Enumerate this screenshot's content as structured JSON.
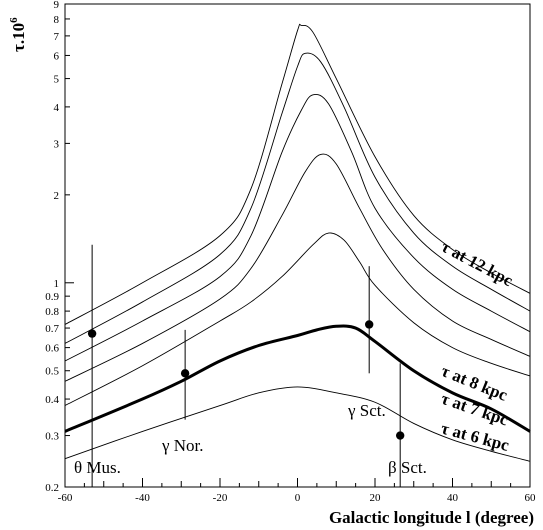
{
  "chart_data": {
    "type": "line",
    "xlabel": "Galactic longitude l (degree)",
    "ylabel": "τ.10",
    "ylabel_exponent": "6",
    "y_scale": "log",
    "xlim": [
      -60,
      60
    ],
    "ylim": [
      0.2,
      9
    ],
    "x_ticks": [
      "-60",
      "-40",
      "-20",
      "0",
      "20",
      "40",
      "60"
    ],
    "y_ticks": [
      {
        "value": 0.2,
        "label": "0.2"
      },
      {
        "value": 0.3,
        "label": "0.3"
      },
      {
        "value": 0.4,
        "label": "0.4"
      },
      {
        "value": 0.5,
        "label": "0.5"
      },
      {
        "value": 0.6,
        "label": "0.6"
      },
      {
        "value": 0.7,
        "label": "0.7"
      },
      {
        "value": 0.8,
        "label": "0.8"
      },
      {
        "value": 0.9,
        "label": "0.9"
      },
      {
        "value": 1,
        "label": "1"
      },
      {
        "value": 2,
        "label": "2"
      },
      {
        "value": 3,
        "label": "3"
      },
      {
        "value": 4,
        "label": "4"
      },
      {
        "value": 5,
        "label": "5"
      },
      {
        "value": 6,
        "label": "6"
      },
      {
        "value": 7,
        "label": "7"
      },
      {
        "value": 8,
        "label": "8"
      },
      {
        "value": 9,
        "label": "9"
      }
    ],
    "series": [
      {
        "name": "τ at 6 kpc",
        "bold": false,
        "x": [
          -60,
          -40,
          -20,
          -10,
          0,
          10,
          20,
          30,
          40,
          50,
          60
        ],
        "y": [
          0.25,
          0.31,
          0.38,
          0.42,
          0.44,
          0.42,
          0.39,
          0.33,
          0.29,
          0.265,
          0.245
        ]
      },
      {
        "name": "τ at 7 kpc",
        "bold": true,
        "x": [
          -60,
          -40,
          -30,
          -20,
          -10,
          0,
          5,
          10,
          15,
          20,
          30,
          40,
          50,
          60
        ],
        "y": [
          0.31,
          0.4,
          0.46,
          0.54,
          0.61,
          0.66,
          0.69,
          0.71,
          0.7,
          0.63,
          0.5,
          0.42,
          0.37,
          0.31
        ]
      },
      {
        "name": "",
        "bold": false,
        "x": [
          -60,
          -40,
          -20,
          -12,
          -4,
          4,
          8,
          12,
          16,
          20,
          30,
          40,
          50,
          60
        ],
        "y": [
          0.38,
          0.52,
          0.74,
          0.86,
          1.05,
          1.35,
          1.48,
          1.4,
          1.18,
          0.98,
          0.73,
          0.6,
          0.53,
          0.48
        ]
      },
      {
        "name": "",
        "bold": false,
        "x": [
          -60,
          -40,
          -20,
          -12,
          -4,
          2,
          6,
          10,
          16,
          22,
          30,
          40,
          50,
          60
        ],
        "y": [
          0.46,
          0.62,
          0.88,
          1.12,
          1.7,
          2.4,
          2.75,
          2.55,
          1.8,
          1.3,
          0.95,
          0.74,
          0.64,
          0.56
        ]
      },
      {
        "name": "τ at 8 kpc",
        "bold": false,
        "x": [
          -60,
          -40,
          -20,
          -12,
          -4,
          1,
          4,
          8,
          14,
          20,
          30,
          40,
          50,
          60
        ],
        "y": [
          0.54,
          0.74,
          1.05,
          1.45,
          2.8,
          3.9,
          4.4,
          4.1,
          2.8,
          1.8,
          1.22,
          0.95,
          0.8,
          0.68
        ]
      },
      {
        "name": "",
        "bold": false,
        "x": [
          -60,
          -40,
          -20,
          -12,
          -4,
          0,
          2,
          6,
          12,
          20,
          30,
          40,
          50,
          60
        ],
        "y": [
          0.62,
          0.86,
          1.25,
          1.8,
          3.8,
          5.5,
          6.1,
          5.7,
          4.0,
          2.3,
          1.48,
          1.14,
          0.95,
          0.8
        ]
      },
      {
        "name": "τ at 12 kpc",
        "bold": false,
        "x": [
          -60,
          -40,
          -20,
          -12,
          -4,
          0,
          1,
          4,
          10,
          20,
          30,
          40,
          50,
          60
        ],
        "y": [
          0.72,
          1.0,
          1.45,
          2.1,
          4.8,
          7.3,
          7.6,
          7.2,
          5.0,
          2.7,
          1.7,
          1.3,
          1.08,
          0.92
        ]
      }
    ],
    "points": [
      {
        "name": "θ Mus.",
        "x": -53,
        "y": 0.67,
        "err_low": 0.2,
        "err_high": 1.35
      },
      {
        "name": "γ Nor.",
        "x": -29,
        "y": 0.49,
        "err_low": 0.34,
        "err_high": 0.69
      },
      {
        "name": "γ Sct.",
        "x": 18.5,
        "y": 0.72,
        "err_low": 0.49,
        "err_high": 1.14
      },
      {
        "name": "β Sct.",
        "x": 26.5,
        "y": 0.3,
        "err_low": 0.2,
        "err_high": 0.53
      }
    ]
  }
}
